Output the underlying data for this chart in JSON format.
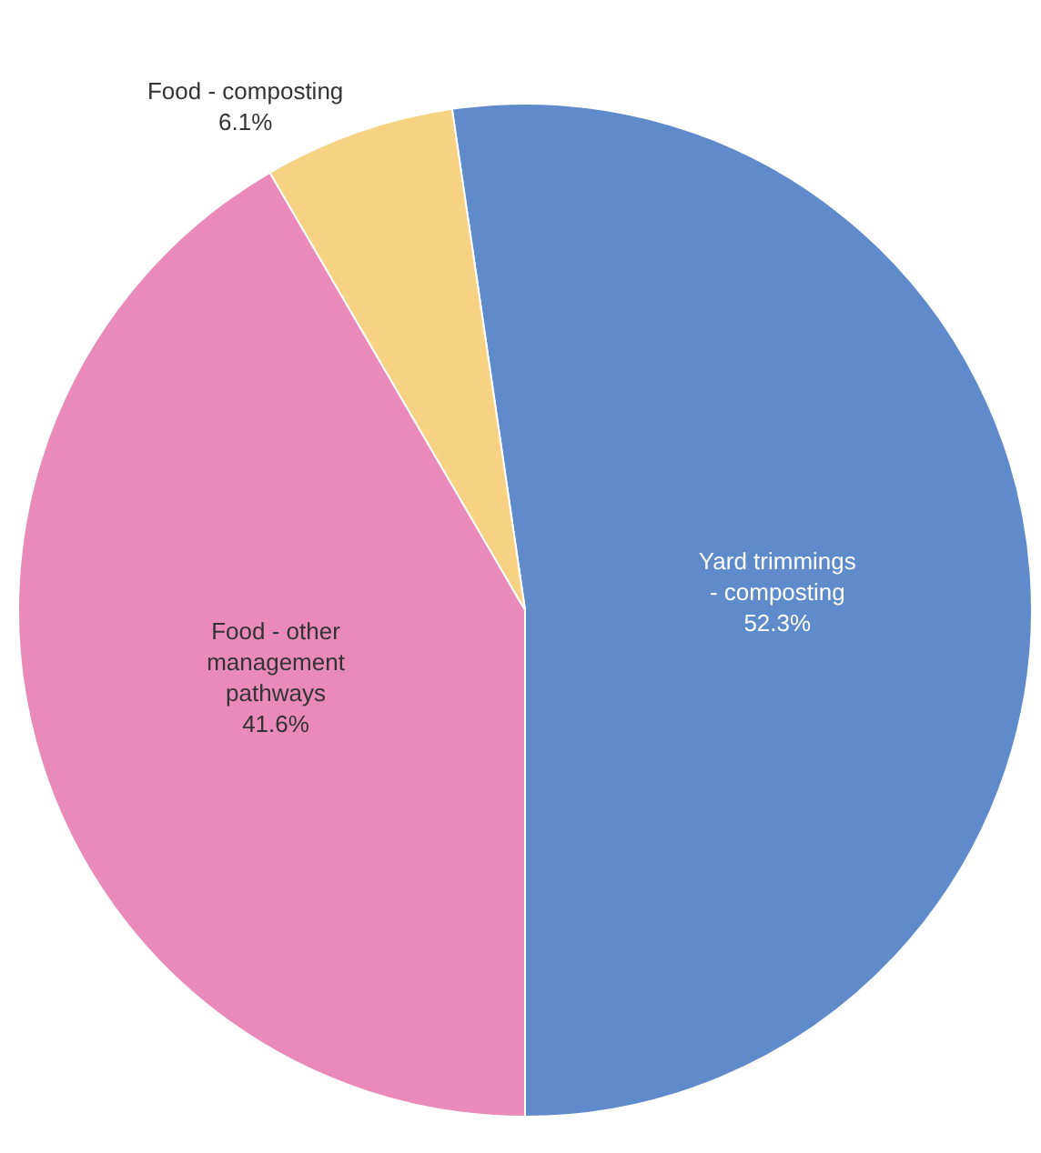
{
  "chart_data": {
    "type": "pie",
    "categories": [
      "Yard trimmings - composting",
      "Food - other management pathways",
      "Food - composting"
    ],
    "values": [
      52.3,
      41.6,
      6.1
    ],
    "colors": [
      "#5f8bcb",
      "#e98ab9",
      "#f7d283"
    ],
    "value_labels": [
      "52.3%",
      "41.6%",
      "6.1%"
    ]
  }
}
